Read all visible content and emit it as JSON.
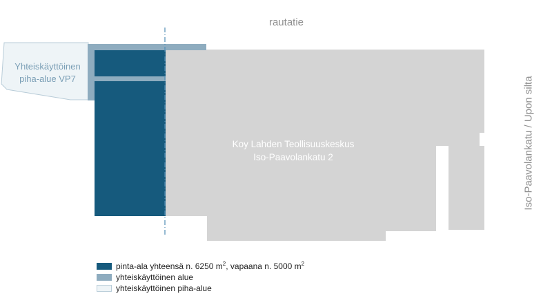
{
  "labels": {
    "top": "rautatie",
    "right": "Iso-Paavolankatu / Upon silta",
    "building_line1": "Koy Lahden Teollisuuskeskus",
    "building_line2": "Iso-Paavolankatu 2",
    "yard_line1": "Yhteiskäyttöinen",
    "yard_line2": "piha-alue VP7"
  },
  "legend": {
    "item1_text_a": "pinta-ala yhteensä n. 6250 m",
    "item1_sup_a": "2",
    "item1_text_b": ", vapaana n. 5000 m",
    "item1_sup_b": "2",
    "item2_text": "yhteiskäyttöinen alue",
    "item3_text": "yhteiskäyttöinen piha-alue"
  },
  "colors": {
    "available_area": "#165a7d",
    "shared_area": "#8eacbf",
    "shared_yard": "#eef4f7",
    "building": "#d4d4d4",
    "axis_line": "#4f8db5"
  }
}
